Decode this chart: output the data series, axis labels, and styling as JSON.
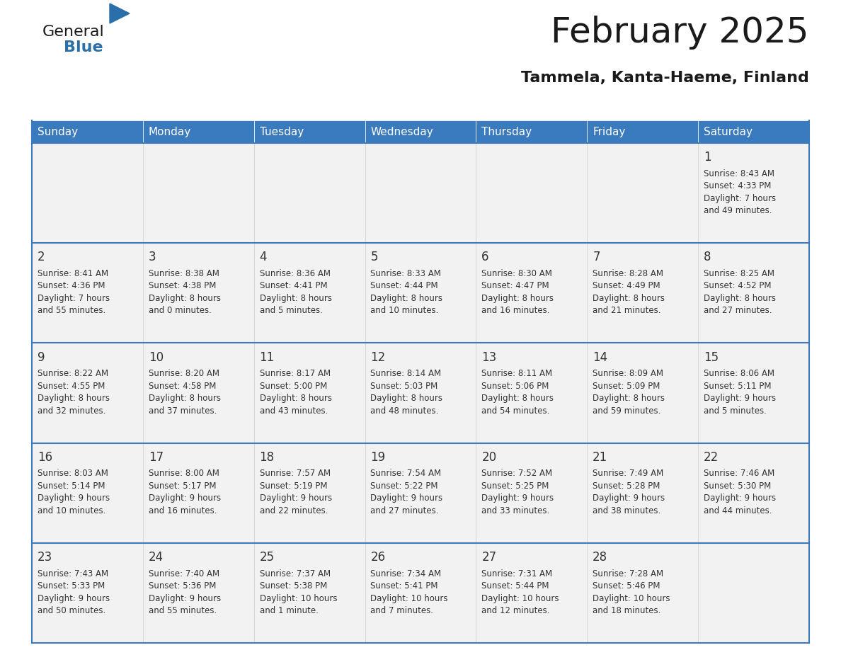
{
  "title": "February 2025",
  "subtitle": "Tammela, Kanta-Haeme, Finland",
  "days_of_week": [
    "Sunday",
    "Monday",
    "Tuesday",
    "Wednesday",
    "Thursday",
    "Friday",
    "Saturday"
  ],
  "header_bg": "#3a7bbf",
  "header_text": "#ffffff",
  "cell_bg": "#f2f2f2",
  "cell_border_color": "#3a7bbf",
  "day_number_color": "#333333",
  "info_text_color": "#333333",
  "title_color": "#1a1a1a",
  "subtitle_color": "#1a1a1a",
  "logo_general_color": "#1a1a1a",
  "logo_blue_color": "#2a6faa",
  "calendar_data": {
    "1": {
      "sunrise": "8:43 AM",
      "sunset": "4:33 PM",
      "daylight": "7 hours\nand 49 minutes."
    },
    "2": {
      "sunrise": "8:41 AM",
      "sunset": "4:36 PM",
      "daylight": "7 hours\nand 55 minutes."
    },
    "3": {
      "sunrise": "8:38 AM",
      "sunset": "4:38 PM",
      "daylight": "8 hours\nand 0 minutes."
    },
    "4": {
      "sunrise": "8:36 AM",
      "sunset": "4:41 PM",
      "daylight": "8 hours\nand 5 minutes."
    },
    "5": {
      "sunrise": "8:33 AM",
      "sunset": "4:44 PM",
      "daylight": "8 hours\nand 10 minutes."
    },
    "6": {
      "sunrise": "8:30 AM",
      "sunset": "4:47 PM",
      "daylight": "8 hours\nand 16 minutes."
    },
    "7": {
      "sunrise": "8:28 AM",
      "sunset": "4:49 PM",
      "daylight": "8 hours\nand 21 minutes."
    },
    "8": {
      "sunrise": "8:25 AM",
      "sunset": "4:52 PM",
      "daylight": "8 hours\nand 27 minutes."
    },
    "9": {
      "sunrise": "8:22 AM",
      "sunset": "4:55 PM",
      "daylight": "8 hours\nand 32 minutes."
    },
    "10": {
      "sunrise": "8:20 AM",
      "sunset": "4:58 PM",
      "daylight": "8 hours\nand 37 minutes."
    },
    "11": {
      "sunrise": "8:17 AM",
      "sunset": "5:00 PM",
      "daylight": "8 hours\nand 43 minutes."
    },
    "12": {
      "sunrise": "8:14 AM",
      "sunset": "5:03 PM",
      "daylight": "8 hours\nand 48 minutes."
    },
    "13": {
      "sunrise": "8:11 AM",
      "sunset": "5:06 PM",
      "daylight": "8 hours\nand 54 minutes."
    },
    "14": {
      "sunrise": "8:09 AM",
      "sunset": "5:09 PM",
      "daylight": "8 hours\nand 59 minutes."
    },
    "15": {
      "sunrise": "8:06 AM",
      "sunset": "5:11 PM",
      "daylight": "9 hours\nand 5 minutes."
    },
    "16": {
      "sunrise": "8:03 AM",
      "sunset": "5:14 PM",
      "daylight": "9 hours\nand 10 minutes."
    },
    "17": {
      "sunrise": "8:00 AM",
      "sunset": "5:17 PM",
      "daylight": "9 hours\nand 16 minutes."
    },
    "18": {
      "sunrise": "7:57 AM",
      "sunset": "5:19 PM",
      "daylight": "9 hours\nand 22 minutes."
    },
    "19": {
      "sunrise": "7:54 AM",
      "sunset": "5:22 PM",
      "daylight": "9 hours\nand 27 minutes."
    },
    "20": {
      "sunrise": "7:52 AM",
      "sunset": "5:25 PM",
      "daylight": "9 hours\nand 33 minutes."
    },
    "21": {
      "sunrise": "7:49 AM",
      "sunset": "5:28 PM",
      "daylight": "9 hours\nand 38 minutes."
    },
    "22": {
      "sunrise": "7:46 AM",
      "sunset": "5:30 PM",
      "daylight": "9 hours\nand 44 minutes."
    },
    "23": {
      "sunrise": "7:43 AM",
      "sunset": "5:33 PM",
      "daylight": "9 hours\nand 50 minutes."
    },
    "24": {
      "sunrise": "7:40 AM",
      "sunset": "5:36 PM",
      "daylight": "9 hours\nand 55 minutes."
    },
    "25": {
      "sunrise": "7:37 AM",
      "sunset": "5:38 PM",
      "daylight": "10 hours\nand 1 minute."
    },
    "26": {
      "sunrise": "7:34 AM",
      "sunset": "5:41 PM",
      "daylight": "10 hours\nand 7 minutes."
    },
    "27": {
      "sunrise": "7:31 AM",
      "sunset": "5:44 PM",
      "daylight": "10 hours\nand 12 minutes."
    },
    "28": {
      "sunrise": "7:28 AM",
      "sunset": "5:46 PM",
      "daylight": "10 hours\nand 18 minutes."
    }
  },
  "weeks": [
    [
      null,
      null,
      null,
      null,
      null,
      null,
      1
    ],
    [
      2,
      3,
      4,
      5,
      6,
      7,
      8
    ],
    [
      9,
      10,
      11,
      12,
      13,
      14,
      15
    ],
    [
      16,
      17,
      18,
      19,
      20,
      21,
      22
    ],
    [
      23,
      24,
      25,
      26,
      27,
      28,
      null
    ]
  ],
  "figsize": [
    11.88,
    9.18
  ],
  "dpi": 100
}
